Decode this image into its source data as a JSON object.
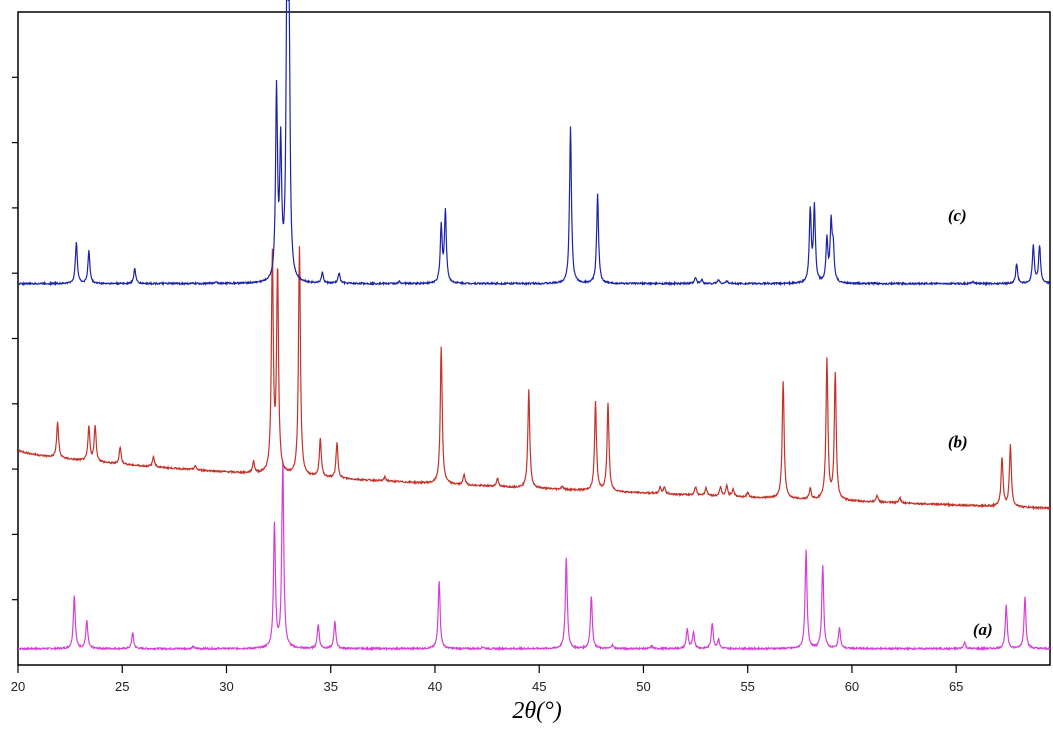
{
  "chart_data": {
    "type": "line",
    "title": "",
    "xlabel": "2θ(°)",
    "ylabel": "",
    "xlim": [
      20,
      69.5
    ],
    "ylim": [
      0,
      100
    ],
    "x_ticks": [
      20,
      25,
      30,
      35,
      40,
      45,
      50,
      55,
      60,
      65
    ],
    "y_ticks": [
      10,
      20,
      30,
      40,
      50,
      60,
      70,
      80,
      90
    ],
    "grid": false,
    "legend": "none",
    "series": [
      {
        "name": "(a)",
        "color": "#d63fd6",
        "baseline": 2.5,
        "peaks": [
          [
            22.7,
            8.2
          ],
          [
            23.3,
            4.3
          ],
          [
            25.5,
            2.4
          ],
          [
            28.4,
            0.3
          ],
          [
            32.3,
            18.8
          ],
          [
            32.7,
            28.6
          ],
          [
            34.4,
            3.7
          ],
          [
            35.2,
            4.2
          ],
          [
            40.2,
            10.4
          ],
          [
            42.3,
            0.3
          ],
          [
            46.3,
            14.0
          ],
          [
            47.5,
            8.0
          ],
          [
            48.5,
            0.6
          ],
          [
            50.4,
            0.4
          ],
          [
            52.1,
            3.0
          ],
          [
            52.4,
            2.6
          ],
          [
            53.3,
            3.9
          ],
          [
            53.6,
            1.4
          ],
          [
            57.8,
            15.0
          ],
          [
            58.6,
            12.6
          ],
          [
            59.4,
            3.3
          ],
          [
            65.4,
            1.0
          ],
          [
            67.4,
            6.6
          ],
          [
            68.3,
            7.9
          ]
        ]
      },
      {
        "name": "(b)",
        "color": "#c4322a",
        "baseline_start": 33.0,
        "baseline_end": 24.0,
        "peaks": [
          [
            21.9,
            5.5
          ],
          [
            23.4,
            5.3
          ],
          [
            23.7,
            5.5
          ],
          [
            24.9,
            2.6
          ],
          [
            26.5,
            1.6
          ],
          [
            28.5,
            0.6
          ],
          [
            31.3,
            1.8
          ],
          [
            32.2,
            33.0
          ],
          [
            32.45,
            31.0
          ],
          [
            33.5,
            35.0
          ],
          [
            34.5,
            6.0
          ],
          [
            35.3,
            5.4
          ],
          [
            37.6,
            0.6
          ],
          [
            40.3,
            21.0
          ],
          [
            41.4,
            1.6
          ],
          [
            43.0,
            1.3
          ],
          [
            44.5,
            15.0
          ],
          [
            46.1,
            0.5
          ],
          [
            47.7,
            13.6
          ],
          [
            48.3,
            13.5
          ],
          [
            50.8,
            1.0
          ],
          [
            51.0,
            1.0
          ],
          [
            52.5,
            1.3
          ],
          [
            53.0,
            1.2
          ],
          [
            53.7,
            1.4
          ],
          [
            54.0,
            1.6
          ],
          [
            54.3,
            1.2
          ],
          [
            55.0,
            0.7
          ],
          [
            56.7,
            18.0
          ],
          [
            58.0,
            1.6
          ],
          [
            58.8,
            21.5
          ],
          [
            59.2,
            19.3
          ],
          [
            61.2,
            1.0
          ],
          [
            62.3,
            0.8
          ],
          [
            67.2,
            7.5
          ],
          [
            67.6,
            9.5
          ]
        ]
      },
      {
        "name": "(c)",
        "color": "#1a23a8",
        "baseline": 58.4,
        "peaks": [
          [
            22.8,
            6.4
          ],
          [
            23.4,
            5.0
          ],
          [
            25.6,
            2.3
          ],
          [
            29.5,
            0.3
          ],
          [
            32.4,
            29.0
          ],
          [
            32.6,
            20.0
          ],
          [
            32.9,
            40.0
          ],
          [
            33.0,
            37.0
          ],
          [
            34.6,
            1.6
          ],
          [
            35.4,
            1.6
          ],
          [
            38.3,
            0.3
          ],
          [
            40.3,
            8.6
          ],
          [
            40.5,
            11.0
          ],
          [
            46.5,
            24.0
          ],
          [
            47.8,
            13.6
          ],
          [
            52.5,
            0.9
          ],
          [
            52.8,
            0.6
          ],
          [
            53.6,
            0.6
          ],
          [
            54.0,
            0.4
          ],
          [
            58.0,
            11.0
          ],
          [
            58.2,
            11.5
          ],
          [
            58.8,
            6.5
          ],
          [
            59.0,
            8.8
          ],
          [
            59.1,
            5.0
          ],
          [
            65.8,
            0.4
          ],
          [
            67.9,
            3.0
          ],
          [
            68.7,
            5.8
          ],
          [
            69.0,
            5.8
          ]
        ]
      }
    ],
    "annotations": [
      {
        "text": "(c)",
        "x": 64.6,
        "y": 68.0
      },
      {
        "text": "(b)",
        "x": 64.6,
        "y": 33.3
      },
      {
        "text": "(a)",
        "x": 65.8,
        "y": 4.6
      }
    ]
  }
}
